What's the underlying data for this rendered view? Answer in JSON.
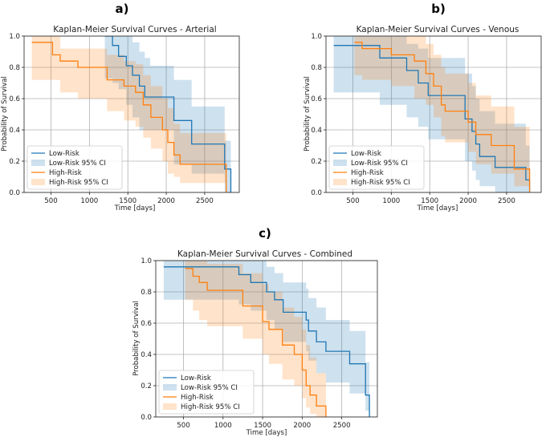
{
  "chart_data": [
    {
      "panel_label": "a)",
      "type": "line",
      "title": "Kaplan-Meier Survival Curves - Arterial",
      "xlabel": "Time [days]",
      "ylabel": "Probability of Survival",
      "xticks": [
        500,
        1000,
        1500,
        2000,
        2500
      ],
      "yticks": [
        0.0,
        0.2,
        0.4,
        0.6,
        0.8,
        1.0
      ],
      "xlim": [
        150,
        2950
      ],
      "ylim": [
        0,
        1
      ],
      "grid": true,
      "legend_position": "lower-left",
      "legend": [
        "Low-Risk",
        "Low-Risk 95% CI",
        "High-Risk",
        "High-Risk 95% CI"
      ],
      "colors": {
        "low": "#1f77b4",
        "high": "#ff7f0e"
      },
      "series": [
        {
          "name": "Low-Risk",
          "x": [
            1200,
            1300,
            1380,
            1480,
            1560,
            1650,
            1720,
            1790,
            2100,
            2180,
            2330,
            2680,
            2760,
            2840
          ],
          "y": [
            1.0,
            0.94,
            0.87,
            0.81,
            0.75,
            0.68,
            0.61,
            0.61,
            0.46,
            0.46,
            0.31,
            0.31,
            0.15,
            0.0
          ],
          "ci_lower": [
            0.73,
            0.7,
            0.66,
            0.56,
            0.48,
            0.4,
            0.4,
            0.4,
            0.18,
            0.18,
            0.12,
            0.12,
            0.0,
            0.0
          ],
          "ci_upper": [
            1.0,
            1.0,
            1.0,
            1.0,
            0.96,
            0.9,
            0.86,
            0.81,
            0.72,
            0.72,
            0.55,
            0.55,
            0.33,
            0.0
          ]
        },
        {
          "name": "High-Risk",
          "x": [
            250,
            520,
            620,
            850,
            1230,
            1450,
            1600,
            1700,
            1800,
            1950,
            2020,
            2100,
            2180,
            2380,
            2780
          ],
          "y": [
            0.96,
            0.88,
            0.84,
            0.8,
            0.72,
            0.68,
            0.64,
            0.56,
            0.48,
            0.4,
            0.32,
            0.24,
            0.18,
            0.18,
            0.0
          ],
          "ci_lower": [
            0.72,
            0.72,
            0.64,
            0.6,
            0.52,
            0.46,
            0.42,
            0.35,
            0.28,
            0.2,
            0.12,
            0.1,
            0.06,
            0.06,
            0.0
          ],
          "ci_upper": [
            1.0,
            1.0,
            0.92,
            0.92,
            0.88,
            0.84,
            0.82,
            0.75,
            0.68,
            0.6,
            0.54,
            0.44,
            0.38,
            0.38,
            0.0
          ]
        }
      ]
    },
    {
      "panel_label": "b)",
      "type": "line",
      "title": "Kaplan-Meier Survival Curves - Venous",
      "xlabel": "Time [days]",
      "ylabel": "Probability of Survival",
      "xticks": [
        500,
        1000,
        1500,
        2000,
        2500
      ],
      "yticks": [
        0.0,
        0.2,
        0.4,
        0.6,
        0.8,
        1.0
      ],
      "xlim": [
        150,
        2950
      ],
      "ylim": [
        0,
        1
      ],
      "grid": true,
      "legend_position": "lower-left",
      "legend": [
        "Low-Risk",
        "Low-Risk 95% CI",
        "High-Risk",
        "High-Risk 95% CI"
      ],
      "colors": {
        "low": "#1f77b4",
        "high": "#ff7f0e"
      },
      "series": [
        {
          "name": "Low-Risk",
          "x": [
            250,
            520,
            850,
            1200,
            1350,
            1480,
            1550,
            1960,
            2050,
            2100,
            2150,
            2350,
            2750,
            2800
          ],
          "y": [
            0.94,
            0.94,
            0.86,
            0.78,
            0.7,
            0.62,
            0.62,
            0.47,
            0.39,
            0.31,
            0.23,
            0.16,
            0.08,
            0.0
          ],
          "ci_lower": [
            0.64,
            0.64,
            0.56,
            0.48,
            0.42,
            0.34,
            0.34,
            0.2,
            0.14,
            0.08,
            0.04,
            0.0,
            0.0,
            0.0
          ],
          "ci_upper": [
            1.0,
            1.0,
            1.0,
            0.95,
            0.92,
            0.86,
            0.86,
            0.76,
            0.68,
            0.6,
            0.52,
            0.44,
            0.3,
            0.0
          ]
        },
        {
          "name": "High-Risk",
          "x": [
            520,
            620,
            1000,
            1300,
            1450,
            1550,
            1650,
            1700,
            2000,
            2100,
            2300,
            2600,
            2800
          ],
          "y": [
            0.96,
            0.92,
            0.88,
            0.84,
            0.76,
            0.68,
            0.56,
            0.52,
            0.45,
            0.37,
            0.3,
            0.15,
            0.0
          ],
          "ci_lower": [
            0.75,
            0.72,
            0.68,
            0.6,
            0.56,
            0.48,
            0.36,
            0.32,
            0.26,
            0.18,
            0.12,
            0.04,
            0.0
          ],
          "ci_upper": [
            1.0,
            1.0,
            1.0,
            1.0,
            0.95,
            0.88,
            0.8,
            0.76,
            0.7,
            0.62,
            0.55,
            0.42,
            0.0
          ]
        }
      ]
    },
    {
      "panel_label": "c)",
      "type": "line",
      "title": "Kaplan-Meier Survival Curves - Combined",
      "xlabel": "Time [days]",
      "ylabel": "Probability of Survival",
      "xticks": [
        500,
        1000,
        1500,
        2000,
        2500
      ],
      "yticks": [
        0.0,
        0.2,
        0.4,
        0.6,
        0.8,
        1.0
      ],
      "xlim": [
        150,
        2950
      ],
      "ylim": [
        0,
        1
      ],
      "grid": true,
      "legend_position": "lower-left",
      "legend": [
        "Low-Risk",
        "Low-Risk 95% CI",
        "High-Risk",
        "High-Risk 95% CI"
      ],
      "colors": {
        "low": "#1f77b4",
        "high": "#ff7f0e"
      },
      "series": [
        {
          "name": "Low-Risk",
          "x": [
            250,
            1200,
            1350,
            1550,
            1650,
            1760,
            1830,
            2050,
            2080,
            2180,
            2300,
            2600,
            2800,
            2850
          ],
          "y": [
            0.96,
            0.91,
            0.86,
            0.8,
            0.75,
            0.67,
            0.67,
            0.62,
            0.55,
            0.48,
            0.42,
            0.34,
            0.14,
            0.0
          ],
          "ci_lower": [
            0.75,
            0.72,
            0.68,
            0.62,
            0.56,
            0.48,
            0.48,
            0.42,
            0.36,
            0.28,
            0.22,
            0.15,
            0.04,
            0.0
          ],
          "ci_upper": [
            1.0,
            1.0,
            1.0,
            0.96,
            0.92,
            0.86,
            0.86,
            0.82,
            0.76,
            0.7,
            0.62,
            0.55,
            0.35,
            0.0
          ]
        },
        {
          "name": "High-Risk",
          "x": [
            520,
            620,
            700,
            800,
            1250,
            1500,
            1580,
            1750,
            1900,
            2000,
            2050,
            2100,
            2180,
            2300
          ],
          "y": [
            0.95,
            0.9,
            0.86,
            0.81,
            0.71,
            0.61,
            0.56,
            0.46,
            0.4,
            0.3,
            0.2,
            0.14,
            0.07,
            0.0
          ],
          "ci_lower": [
            0.75,
            0.68,
            0.62,
            0.58,
            0.5,
            0.4,
            0.34,
            0.24,
            0.2,
            0.12,
            0.06,
            0.02,
            0.0,
            0.0
          ],
          "ci_upper": [
            1.0,
            1.0,
            1.0,
            0.98,
            0.92,
            0.85,
            0.8,
            0.7,
            0.64,
            0.56,
            0.46,
            0.38,
            0.28,
            0.0
          ]
        }
      ]
    }
  ]
}
